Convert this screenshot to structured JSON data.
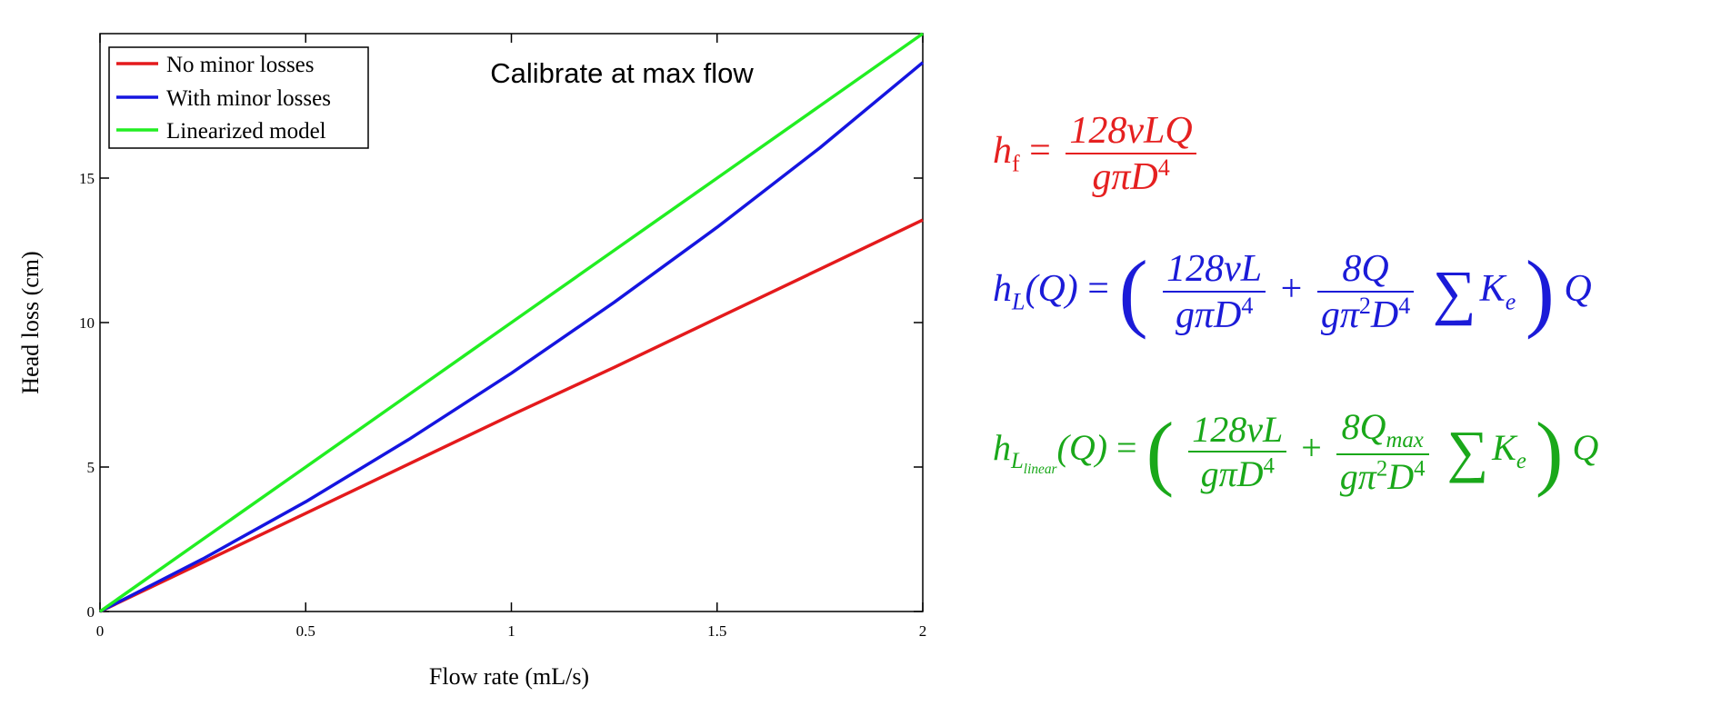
{
  "chart_data": {
    "type": "line",
    "title": "Calibrate at max flow",
    "xlabel": "Flow rate (mL/s)",
    "ylabel": "Head loss (cm)",
    "xlim": [
      0,
      2
    ],
    "ylim": [
      0,
      20
    ],
    "xticks": [
      0,
      0.5,
      1,
      1.5,
      2
    ],
    "xtick_labels": [
      "0",
      "0.5",
      "1",
      "1.5",
      "2"
    ],
    "yticks": [
      0,
      5,
      10,
      15
    ],
    "ytick_labels": [
      "0",
      "5",
      "10",
      "15"
    ],
    "grid": false,
    "legend_position": "top-left",
    "series": [
      {
        "name": "No minor losses",
        "color": "#e41a1c",
        "x": [
          0,
          0.25,
          0.5,
          0.75,
          1.0,
          1.25,
          1.5,
          1.75,
          2.0
        ],
        "y": [
          0,
          1.7,
          3.4,
          5.1,
          6.8,
          8.45,
          10.15,
          11.85,
          13.55
        ]
      },
      {
        "name": "With minor losses",
        "color": "#1515e0",
        "x": [
          0,
          0.25,
          0.5,
          0.75,
          1.0,
          1.25,
          1.5,
          1.75,
          2.0
        ],
        "y": [
          0,
          1.82,
          3.8,
          5.95,
          8.25,
          10.7,
          13.3,
          16.05,
          19.0
        ]
      },
      {
        "name": "Linearized model",
        "color": "#22ee22",
        "x": [
          0,
          0.25,
          0.5,
          0.75,
          1.0,
          1.25,
          1.5,
          1.75,
          2.0
        ],
        "y": [
          0,
          2.5,
          5.0,
          7.5,
          10.0,
          12.5,
          15.0,
          17.5,
          20.0
        ]
      }
    ]
  },
  "equations": {
    "hf": {
      "color": "#e52020",
      "lhs_var": "h",
      "lhs_sub": "f",
      "equals": "=",
      "num": "128νLQ",
      "den_main": "gπD",
      "den_sup": "4"
    },
    "hL": {
      "color": "#1b1bd8",
      "lhs": "h",
      "lhs_sub": "L",
      "arg": "(Q)",
      "equals": "=",
      "open": "(",
      "close": ")",
      "num1": "128νL",
      "den1_main": "gπD",
      "den1_sup": "4",
      "plus": "+",
      "num2": "8Q",
      "den2_main": "gπ",
      "den2_sup1": "2",
      "den2_mid": "D",
      "den2_sup2": "4",
      "sum": "∑",
      "k": "K",
      "k_sub": "e",
      "tail": "Q"
    },
    "hLlin": {
      "color": "#1aa81a",
      "lhs": "h",
      "lhs_sub": "L",
      "lhs_subsub": "linear",
      "arg": "(Q)",
      "equals": "=",
      "open": "(",
      "close": ")",
      "num1": "128νL",
      "den1_main": "gπD",
      "den1_sup": "4",
      "plus": "+",
      "num2_main": "8Q",
      "num2_sub": "max",
      "den2_main": "gπ",
      "den2_sup1": "2",
      "den2_mid": "D",
      "den2_sup2": "4",
      "sum": "∑",
      "k": "K",
      "k_sub": "e",
      "tail": "Q"
    }
  }
}
